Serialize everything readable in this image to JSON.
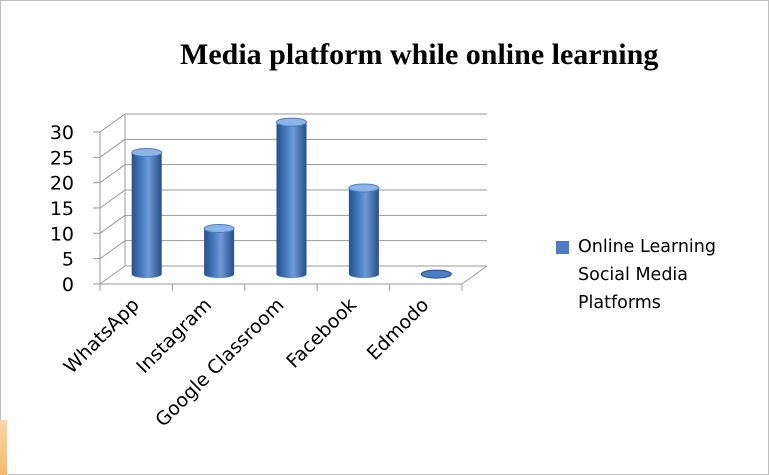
{
  "chart_data": {
    "type": "bar",
    "title": "Media platform while online learning",
    "categories": [
      "WhatsApp",
      "Instagram",
      "Google Classroom",
      "Facebook",
      "Edmodo"
    ],
    "series": [
      {
        "name": "Online Learning Social Media Platforms",
        "values": [
          24,
          9,
          30,
          17,
          0
        ]
      }
    ],
    "yticks": [
      "0",
      "5",
      "10",
      "15",
      "20",
      "25",
      "30"
    ],
    "ylim": [
      0,
      30
    ],
    "xlabel": "",
    "ylabel": "",
    "grid": true,
    "legend_position": "right",
    "style": "3d-cylinder",
    "colors": {
      "bar": "#4a7ec2",
      "bar_dark": "#23508f",
      "bar_light": "#8db4e6",
      "grid": "#9a9a9a"
    }
  }
}
